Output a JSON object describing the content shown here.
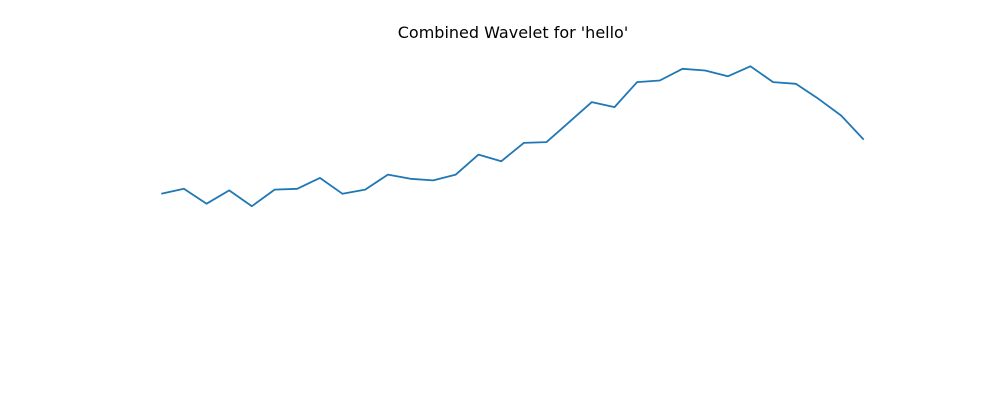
{
  "chart_data": {
    "type": "line",
    "title": "Combined Wavelet for 'hello'",
    "xlabel": "",
    "ylabel": "",
    "axes_visible": false,
    "grid": false,
    "legend": "none",
    "series_color": "#1f77b4",
    "x": [
      0,
      1,
      2,
      3,
      4,
      5,
      6,
      7,
      8,
      9,
      10,
      11,
      12,
      13,
      14,
      15,
      16,
      17,
      18,
      19,
      20,
      21,
      22,
      23,
      24,
      25,
      26,
      27,
      28,
      29,
      30,
      31
    ],
    "values": [
      -0.1,
      -0.04,
      -0.22,
      -0.06,
      -0.25,
      -0.05,
      -0.04,
      0.09,
      -0.1,
      -0.05,
      0.13,
      0.08,
      0.06,
      0.13,
      0.37,
      0.29,
      0.51,
      0.52,
      0.76,
      1.0,
      0.94,
      1.24,
      1.26,
      1.4,
      1.38,
      1.31,
      1.43,
      1.24,
      1.22,
      1.04,
      0.84,
      0.55
    ],
    "ylim": [
      -2.0,
      1.65
    ],
    "xlim": [
      -1.6,
      32.6
    ]
  }
}
